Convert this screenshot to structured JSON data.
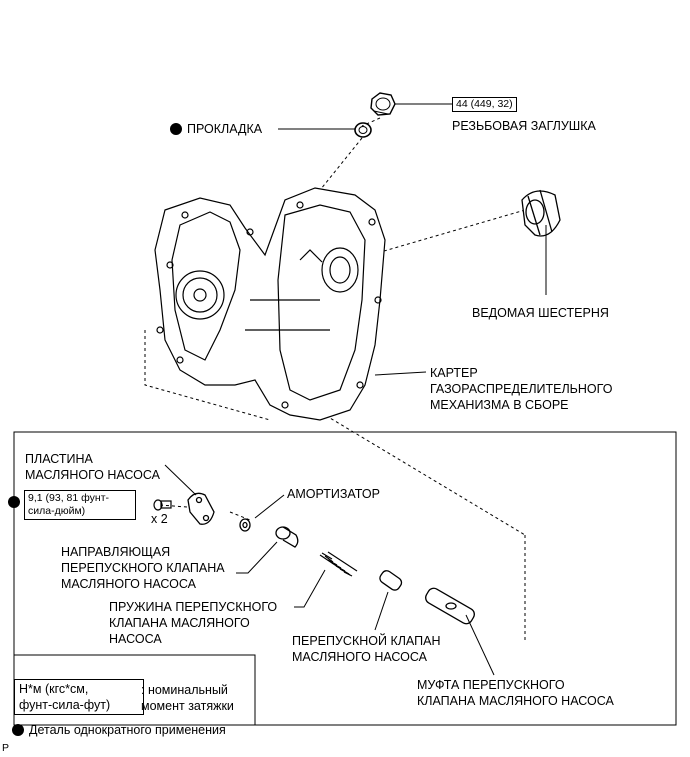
{
  "labels": {
    "torque_plug": "44 (449, 32)",
    "threaded_plug": "РЕЗЬБОВАЯ ЗАГЛУШКА",
    "gasket": "ПРОКЛАДКА",
    "driven_gear": "ВЕДОМАЯ ШЕСТЕРНЯ",
    "housing_l1": "КАРТЕР",
    "housing_l2": "ГАЗОРАСПРЕДЕЛИТЕЛЬНОГО",
    "housing_l3": "МЕХАНИЗМА В СБОРЕ",
    "plate_l1": "ПЛАСТИНА",
    "plate_l2": "МАСЛЯНОГО НАСОСА",
    "torque_screw_l1": "9,1 (93, 81 фунт-",
    "torque_screw_l2": "сила-дюйм)",
    "times_two": "x 2",
    "damper": "АМОРТИЗАТОР",
    "guide_l1": "НАПРАВЛЯЮЩАЯ",
    "guide_l2": "ПЕРЕПУСКНОГО КЛАПАНА",
    "guide_l3": "МАСЛЯНОГО НАСОСА",
    "spring_l1": "ПРУЖИНА ПЕРЕПУСКНОГО",
    "spring_l2": "КЛАПАНА МАСЛЯНОГО",
    "spring_l3": "НАСОСА",
    "valve_l1": "ПЕРЕПУСКНОЙ КЛАПАН",
    "valve_l2": "МАСЛЯНОГО НАСОСА",
    "sleeve_l1": "МУФТА ПЕРЕПУСКНОГО",
    "sleeve_l2": "КЛАПАНА МАСЛЯНОГО НАСОСА"
  },
  "legend": {
    "units_l1": "Н*м (кгс*см,",
    "units_l2": "фунт-сила-фут)",
    "meaning_l1": ": номинальный",
    "meaning_l2": "момент затяжки",
    "single_use": "Деталь однократного применения"
  },
  "corner_mark": "P"
}
